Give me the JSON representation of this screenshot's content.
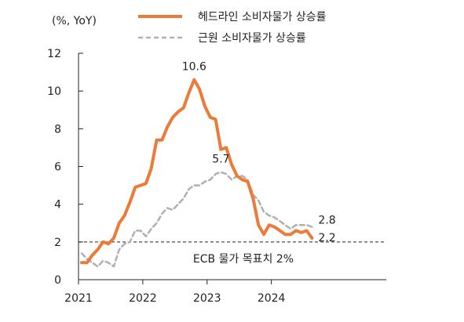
{
  "chart_data": {
    "type": "line",
    "unit_label": "(%, YoY)",
    "ylim": [
      0,
      12
    ],
    "y_ticks": [
      "0",
      "2",
      "4",
      "6",
      "8",
      "10",
      "12"
    ],
    "x_ticks": [
      "2021",
      "2022",
      "2023",
      "2024"
    ],
    "grid": false,
    "legend_position": "top",
    "series": [
      {
        "name": "헤드라인 소비자물가 상승률",
        "color": "#ec7a38",
        "style": "solid",
        "x": [
          "2021-01",
          "2021-02",
          "2021-03",
          "2021-04",
          "2021-05",
          "2021-06",
          "2021-07",
          "2021-08",
          "2021-09",
          "2021-10",
          "2021-11",
          "2021-12",
          "2022-01",
          "2022-02",
          "2022-03",
          "2022-04",
          "2022-05",
          "2022-06",
          "2022-07",
          "2022-08",
          "2022-09",
          "2022-10",
          "2022-11",
          "2022-12",
          "2023-01",
          "2023-02",
          "2023-03",
          "2023-04",
          "2023-05",
          "2023-06",
          "2023-07",
          "2023-08",
          "2023-09",
          "2023-10",
          "2023-11",
          "2023-12",
          "2024-01",
          "2024-02",
          "2024-03",
          "2024-04",
          "2024-05",
          "2024-06",
          "2024-07",
          "2024-08"
        ],
        "values": [
          0.9,
          0.9,
          1.3,
          1.6,
          2.0,
          1.9,
          2.2,
          3.0,
          3.4,
          4.1,
          4.9,
          5.0,
          5.1,
          5.9,
          7.4,
          7.4,
          8.1,
          8.6,
          8.9,
          9.1,
          9.9,
          10.6,
          10.1,
          9.2,
          8.6,
          8.5,
          6.9,
          7.0,
          6.1,
          5.5,
          5.3,
          5.2,
          4.3,
          2.9,
          2.4,
          2.9,
          2.8,
          2.6,
          2.4,
          2.4,
          2.6,
          2.5,
          2.6,
          2.2
        ]
      },
      {
        "name": "근원 소비자물가 상승률",
        "color": "#b0b0b0",
        "style": "dashed",
        "x": [
          "2021-01",
          "2021-02",
          "2021-03",
          "2021-04",
          "2021-05",
          "2021-06",
          "2021-07",
          "2021-08",
          "2021-09",
          "2021-10",
          "2021-11",
          "2021-12",
          "2022-01",
          "2022-02",
          "2022-03",
          "2022-04",
          "2022-05",
          "2022-06",
          "2022-07",
          "2022-08",
          "2022-09",
          "2022-10",
          "2022-11",
          "2022-12",
          "2023-01",
          "2023-02",
          "2023-03",
          "2023-04",
          "2023-05",
          "2023-06",
          "2023-07",
          "2023-08",
          "2023-09",
          "2023-10",
          "2023-11",
          "2023-12",
          "2024-01",
          "2024-02",
          "2024-03",
          "2024-04",
          "2024-05",
          "2024-06",
          "2024-07",
          "2024-08"
        ],
        "values": [
          1.4,
          1.1,
          0.9,
          0.7,
          1.0,
          0.9,
          0.7,
          1.6,
          1.9,
          2.0,
          2.6,
          2.6,
          2.3,
          2.7,
          3.0,
          3.5,
          3.8,
          3.7,
          4.0,
          4.3,
          4.8,
          5.0,
          5.0,
          5.2,
          5.3,
          5.6,
          5.7,
          5.6,
          5.3,
          5.5,
          5.5,
          5.3,
          4.5,
          4.2,
          3.6,
          3.4,
          3.3,
          3.1,
          2.9,
          2.7,
          2.9,
          2.9,
          2.9,
          2.8
        ]
      }
    ],
    "reference_line": {
      "value": 2,
      "label": "ECB 물가 목표치 2%"
    },
    "data_labels": [
      {
        "series": 0,
        "x": "2022-10",
        "text": "10.6"
      },
      {
        "series": 1,
        "x": "2023-03",
        "text": "5.7"
      },
      {
        "series": 1,
        "x": "2024-08",
        "text": "2.8"
      },
      {
        "series": 0,
        "x": "2024-08",
        "text": "2.2"
      }
    ]
  }
}
